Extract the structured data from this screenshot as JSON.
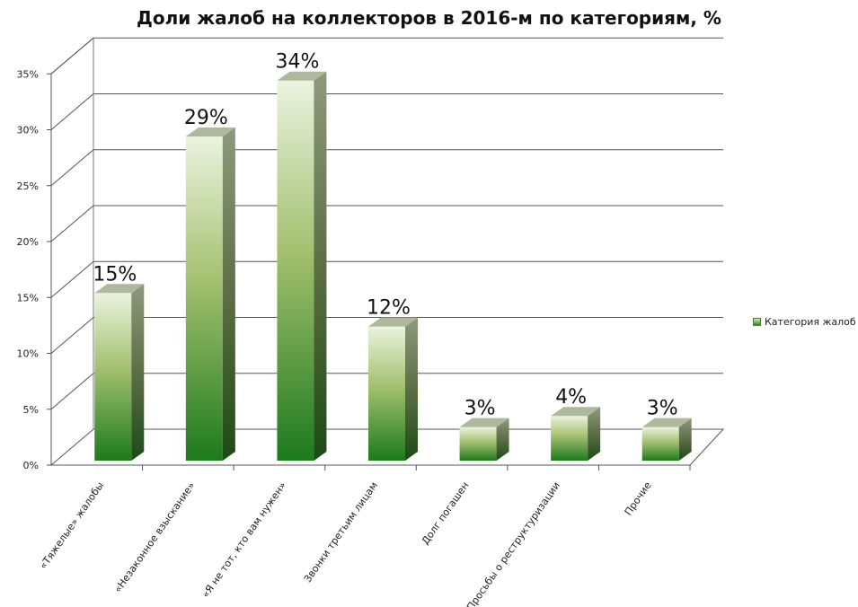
{
  "chart_data": {
    "type": "bar",
    "title": "Доли жалоб на коллекторов в 2016-м по категориям, %",
    "categories": [
      "«Тяжелые» жалобы",
      "«Незаконное взыскание»",
      "«Я не тот, кто вам нужен»",
      "Звонки третьим лицам",
      "Долг погашен",
      "Просьбы о реструктуризации",
      "Прочие"
    ],
    "series": [
      {
        "name": "Категория жалоб",
        "values": [
          15,
          29,
          34,
          12,
          3,
          4,
          3
        ]
      }
    ],
    "data_labels": [
      "15%",
      "29%",
      "34%",
      "12%",
      "3%",
      "4%",
      "3%"
    ],
    "y_ticks": [
      "0%",
      "5%",
      "10%",
      "15%",
      "20%",
      "25%",
      "30%",
      "35%"
    ],
    "ylim": [
      0,
      35
    ],
    "grid": true,
    "legend_position": "right",
    "style": "3d-column",
    "colors": {
      "bar_top": "#e6f1d8",
      "bar_mid": "#9dbe68",
      "bar_bottom": "#1e7a1e",
      "grid": "#555555"
    }
  },
  "legend": {
    "label": "Категория жалоб"
  }
}
